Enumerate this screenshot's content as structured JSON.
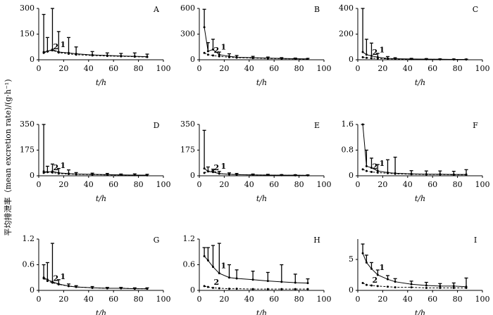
{
  "ylabel": "平均排泄率（mean excretion rate)/(g·h⁻¹)",
  "chart_data": [
    {
      "type": "line",
      "title": "A",
      "xlabel": "t/h",
      "xlim": [
        0,
        100
      ],
      "xticks": [
        0,
        20,
        40,
        60,
        80,
        100
      ],
      "ylim": [
        0,
        300
      ],
      "yticks": [
        0,
        150,
        300
      ],
      "x": [
        4,
        7,
        11,
        16,
        24,
        30,
        43,
        55,
        66,
        77,
        87
      ],
      "series": [
        {
          "name": "1",
          "color": "#000000",
          "values": [
            45,
            50,
            60,
            45,
            40,
            35,
            28,
            25,
            22,
            20,
            18
          ],
          "errors": [
            220,
            80,
            240,
            120,
            90,
            40,
            20,
            15,
            15,
            20,
            15
          ]
        },
        {
          "name": "2",
          "color": "#000000",
          "dash": true,
          "values": [
            40,
            48,
            55,
            42,
            35,
            30,
            25,
            22,
            20,
            18,
            16
          ]
        }
      ]
    },
    {
      "type": "line",
      "title": "B",
      "xlabel": "t/h",
      "xlim": [
        0,
        100
      ],
      "xticks": [
        0,
        20,
        40,
        60,
        80,
        100
      ],
      "ylim": [
        0,
        600
      ],
      "yticks": [
        0,
        300,
        600
      ],
      "x": [
        4,
        7,
        11,
        16,
        24,
        30,
        43,
        55,
        66,
        77,
        87
      ],
      "series": [
        {
          "name": "1",
          "color": "#000000",
          "values": [
            380,
            100,
            120,
            60,
            40,
            30,
            25,
            20,
            15,
            12,
            10
          ],
          "errors": [
            210,
            100,
            120,
            30,
            30,
            20,
            15,
            12,
            10,
            8,
            6
          ]
        },
        {
          "name": "2",
          "color": "#000000",
          "dash": true,
          "values": [
            80,
            60,
            50,
            40,
            30,
            25,
            20,
            15,
            12,
            10,
            8
          ]
        }
      ]
    },
    {
      "type": "line",
      "title": "C",
      "xlabel": "t/h",
      "xlim": [
        0,
        100
      ],
      "xticks": [
        0,
        20,
        40,
        60,
        80,
        100
      ],
      "ylim": [
        0,
        400
      ],
      "yticks": [
        0,
        200,
        400
      ],
      "x": [
        4,
        7,
        11,
        16,
        24,
        30,
        43,
        55,
        66,
        77,
        87
      ],
      "series": [
        {
          "name": "1",
          "color": "#000000",
          "values": [
            60,
            40,
            30,
            20,
            10,
            8,
            6,
            5,
            4,
            3,
            3
          ],
          "errors": [
            340,
            120,
            100,
            30,
            15,
            8,
            5,
            4,
            3,
            3,
            2
          ]
        },
        {
          "name": "2",
          "color": "#000000",
          "dash": true,
          "values": [
            20,
            15,
            12,
            10,
            8,
            6,
            5,
            4,
            3,
            3,
            2
          ]
        }
      ]
    },
    {
      "type": "line",
      "title": "D",
      "xlabel": "t/h",
      "xlim": [
        0,
        100
      ],
      "xticks": [
        0,
        20,
        40,
        60,
        80,
        100
      ],
      "ylim": [
        0,
        350
      ],
      "yticks": [
        0,
        175,
        350
      ],
      "x": [
        4,
        7,
        11,
        16,
        24,
        30,
        43,
        55,
        66,
        77,
        87
      ],
      "series": [
        {
          "name": "1",
          "color": "#000000",
          "values": [
            30,
            25,
            30,
            20,
            15,
            12,
            10,
            8,
            6,
            5,
            4
          ],
          "errors": [
            320,
            40,
            50,
            30,
            25,
            10,
            8,
            8,
            6,
            8,
            6
          ]
        },
        {
          "name": "2",
          "color": "#000000",
          "dash": true,
          "values": [
            20,
            25,
            22,
            15,
            12,
            10,
            8,
            6,
            5,
            4,
            3
          ]
        }
      ]
    },
    {
      "type": "line",
      "title": "E",
      "xlabel": "t/h",
      "xlim": [
        0,
        100
      ],
      "xticks": [
        0,
        20,
        40,
        60,
        80,
        100
      ],
      "ylim": [
        0,
        350
      ],
      "yticks": [
        0,
        175,
        350
      ],
      "x": [
        4,
        7,
        11,
        16,
        24,
        30,
        43,
        55,
        66,
        77,
        87
      ],
      "series": [
        {
          "name": "1",
          "color": "#000000",
          "values": [
            50,
            30,
            25,
            15,
            10,
            8,
            6,
            5,
            4,
            4,
            3
          ],
          "errors": [
            260,
            30,
            20,
            15,
            10,
            8,
            6,
            5,
            4,
            3,
            3
          ]
        },
        {
          "name": "2",
          "color": "#000000",
          "dash": true,
          "values": [
            20,
            30,
            35,
            15,
            10,
            8,
            6,
            5,
            4,
            3,
            3
          ]
        }
      ]
    },
    {
      "type": "line",
      "title": "F",
      "xlabel": "t/h",
      "xlim": [
        0,
        100
      ],
      "xticks": [
        0,
        20,
        40,
        60,
        80,
        100
      ],
      "ylim": [
        0,
        1.6
      ],
      "yticks": [
        0,
        0.8,
        1.6
      ],
      "x": [
        4,
        7,
        11,
        16,
        24,
        30,
        43,
        55,
        66,
        77,
        87
      ],
      "series": [
        {
          "name": "1",
          "color": "#000000",
          "values": [
            1.6,
            0.3,
            0.25,
            0.15,
            0.1,
            0.08,
            0.06,
            0.05,
            0.05,
            0.04,
            0.04
          ],
          "errors": [
            0,
            0.5,
            0.3,
            0.2,
            0.4,
            0.5,
            0.1,
            0.1,
            0.1,
            0.1,
            0.15
          ]
        },
        {
          "name": "2",
          "color": "#000000",
          "dash": true,
          "values": [
            0.2,
            0.15,
            0.12,
            0.1,
            0.08,
            0.06,
            0.05,
            0.04,
            0.04,
            0.03,
            0.03
          ]
        }
      ]
    },
    {
      "type": "line",
      "title": "G",
      "xlabel": "t/h",
      "xlim": [
        0,
        100
      ],
      "xticks": [
        0,
        20,
        40,
        60,
        80,
        100
      ],
      "ylim": [
        0,
        1.2
      ],
      "yticks": [
        0,
        0.6,
        1.2
      ],
      "x": [
        4,
        7,
        11,
        16,
        24,
        30,
        43,
        55,
        66,
        77,
        87
      ],
      "series": [
        {
          "name": "1",
          "color": "#000000",
          "values": [
            0.3,
            0.25,
            0.2,
            0.15,
            0.1,
            0.08,
            0.06,
            0.05,
            0.05,
            0.04,
            0.04
          ],
          "errors": [
            0.3,
            0.4,
            0.9,
            0.1,
            0.05,
            0.03,
            0.03,
            0.02,
            0.02,
            0.02,
            0.02
          ]
        },
        {
          "name": "2",
          "color": "#000000",
          "dash": true,
          "values": [
            0.28,
            0.22,
            0.18,
            0.14,
            0.1,
            0.08,
            0.06,
            0.05,
            0.05,
            0.04,
            0.04
          ]
        }
      ]
    },
    {
      "type": "line",
      "title": "H",
      "xlabel": "t/h",
      "xlim": [
        0,
        100
      ],
      "xticks": [
        0,
        20,
        40,
        60,
        80,
        100
      ],
      "ylim": [
        0,
        1.2
      ],
      "yticks": [
        0,
        0.6,
        1.2
      ],
      "x": [
        4,
        7,
        11,
        16,
        24,
        30,
        43,
        55,
        66,
        77,
        87
      ],
      "series": [
        {
          "name": "1",
          "color": "#000000",
          "values": [
            0.8,
            0.7,
            0.55,
            0.4,
            0.3,
            0.28,
            0.25,
            0.22,
            0.2,
            0.18,
            0.17
          ],
          "errors": [
            0.2,
            0.3,
            0.5,
            0.7,
            0.3,
            0.2,
            0.2,
            0.2,
            0.4,
            0.2,
            0.1
          ]
        },
        {
          "name": "2",
          "color": "#000000",
          "dash": true,
          "values": [
            0.1,
            0.08,
            0.06,
            0.05,
            0.04,
            0.04,
            0.03,
            0.03,
            0.03,
            0.03,
            0.03
          ]
        }
      ]
    },
    {
      "type": "line",
      "title": "I",
      "xlabel": "t/h",
      "xlim": [
        0,
        100
      ],
      "xticks": [
        0,
        20,
        40,
        60,
        80,
        100
      ],
      "ylim": [
        0,
        8.3
      ],
      "yticks": [
        0,
        5
      ],
      "x": [
        4,
        7,
        11,
        16,
        24,
        30,
        43,
        55,
        66,
        77,
        87
      ],
      "series": [
        {
          "name": "1",
          "color": "#000000",
          "values": [
            6,
            4.5,
            3.5,
            2.5,
            1.8,
            1.4,
            1,
            0.8,
            0.7,
            0.7,
            0.6
          ],
          "errors": [
            1.5,
            1.2,
            1,
            0.8,
            0.6,
            0.5,
            0.5,
            0.5,
            0.4,
            0.5,
            1.4
          ]
        },
        {
          "name": "2",
          "color": "#000000",
          "dash": true,
          "values": [
            1.2,
            0.9,
            0.8,
            0.7,
            0.6,
            0.5,
            0.5,
            0.4,
            0.4,
            0.4,
            0.4
          ]
        }
      ]
    }
  ]
}
